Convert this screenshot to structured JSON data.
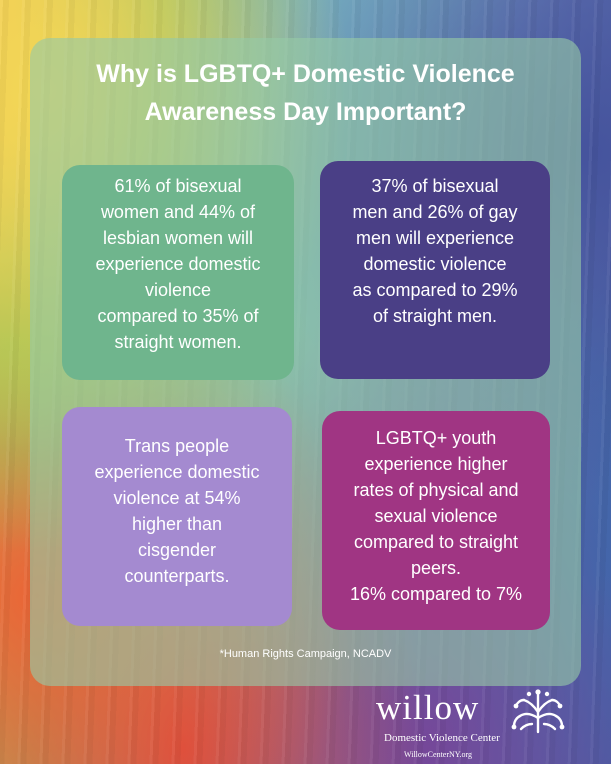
{
  "title": {
    "line1": "Why is LGBTQ+ Domestic Violence",
    "line2": "Awareness Day Important?"
  },
  "cards": [
    {
      "lines": [
        "61% of bisexual",
        "women and 44% of",
        "lesbian women will",
        "experience domestic",
        "violence",
        "compared to 35% of",
        "straight women."
      ],
      "color": "#6fb58d"
    },
    {
      "lines": [
        "37% of bisexual",
        "men and 26% of gay",
        "men will experience",
        "domestic violence",
        "as compared to 29%",
        "of straight men."
      ],
      "color": "#4a3f86"
    },
    {
      "lines": [
        "Trans people",
        "experience domestic",
        "violence at 54%",
        "higher than",
        "cisgender",
        "counterparts."
      ],
      "color": "#a48ad0"
    },
    {
      "lines": [
        "LGBTQ+ youth",
        "experience higher",
        "rates of physical and",
        "sexual violence",
        "compared to straight",
        "peers.",
        "16% compared to 7%"
      ],
      "color": "#a03583"
    }
  ],
  "footnote": "*Human Rights Campaign, NCADV",
  "logo": {
    "wordmark": "willow",
    "subtitle": "Domestic Violence Center",
    "url": "WillowCenterNY.org",
    "icon": "willow-tree-icon"
  }
}
